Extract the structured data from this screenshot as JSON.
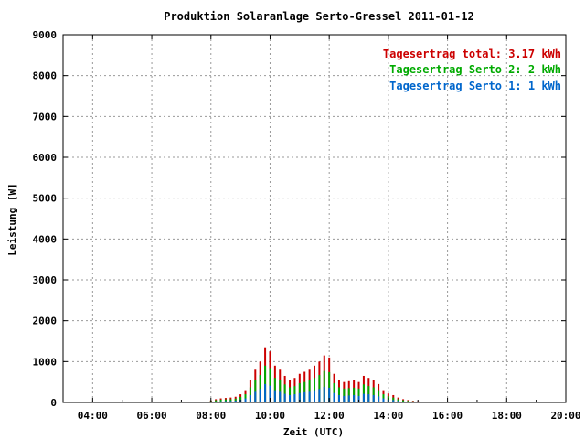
{
  "chart_data": {
    "type": "bar",
    "title": "Produktion Solaranlage Serto-Gressel 2011-01-12",
    "xlabel": "Zeit (UTC)",
    "ylabel": "Leistung [W]",
    "x_ticks": [
      "04:00",
      "06:00",
      "08:00",
      "10:00",
      "12:00",
      "14:00",
      "16:00",
      "18:00",
      "20:00"
    ],
    "y_ticks": [
      "0",
      "1000",
      "2000",
      "3000",
      "4000",
      "5000",
      "6000",
      "7000",
      "8000",
      "9000"
    ],
    "ylim": [
      0,
      9000
    ],
    "xlim_hours": [
      3.0,
      20.0
    ],
    "grid": true,
    "legend_position": "top-right",
    "colors": {
      "total": "#cc0000",
      "serto2": "#00aa00",
      "serto1": "#0066cc"
    },
    "legend": [
      {
        "key": "total",
        "label": "Tagesertrag total:",
        "value": "3.17 kWh"
      },
      {
        "key": "serto2",
        "label": "Tagesertrag Serto 2:",
        "value": "2 kWh"
      },
      {
        "key": "serto1",
        "label": "Tagesertrag Serto 1:",
        "value": "1 kWh"
      }
    ],
    "times": [
      "08:00",
      "08:10",
      "08:20",
      "08:30",
      "08:40",
      "08:50",
      "09:00",
      "09:10",
      "09:20",
      "09:30",
      "09:40",
      "09:50",
      "10:00",
      "10:10",
      "10:20",
      "10:30",
      "10:40",
      "10:50",
      "11:00",
      "11:10",
      "11:20",
      "11:30",
      "11:40",
      "11:50",
      "12:00",
      "12:10",
      "12:20",
      "12:30",
      "12:40",
      "12:50",
      "13:00",
      "13:10",
      "13:20",
      "13:30",
      "13:40",
      "13:50",
      "14:00",
      "14:10",
      "14:20",
      "14:30",
      "14:40",
      "14:50",
      "15:00",
      "15:10"
    ],
    "series": [
      {
        "name": "Tagesertrag total",
        "values": [
          50,
          80,
          100,
          110,
          120,
          140,
          200,
          300,
          550,
          800,
          1000,
          1350,
          1250,
          900,
          800,
          650,
          550,
          600,
          700,
          750,
          800,
          900,
          1000,
          1150,
          1100,
          700,
          550,
          500,
          520,
          540,
          500,
          650,
          600,
          550,
          450,
          300,
          220,
          180,
          120,
          80,
          60,
          40,
          30,
          20
        ]
      },
      {
        "name": "Tagesertrag Serto 2",
        "values": [
          35,
          55,
          70,
          75,
          80,
          95,
          135,
          200,
          370,
          540,
          670,
          900,
          840,
          600,
          540,
          440,
          370,
          400,
          470,
          500,
          540,
          600,
          670,
          770,
          740,
          470,
          370,
          340,
          350,
          360,
          340,
          440,
          400,
          370,
          300,
          200,
          150,
          120,
          80,
          55,
          40,
          27,
          20,
          13
        ]
      },
      {
        "name": "Tagesertrag Serto 1",
        "values": [
          15,
          25,
          30,
          35,
          40,
          45,
          65,
          100,
          180,
          260,
          330,
          450,
          410,
          300,
          260,
          210,
          180,
          200,
          230,
          250,
          260,
          300,
          330,
          380,
          360,
          230,
          180,
          160,
          170,
          180,
          160,
          210,
          200,
          180,
          150,
          100,
          70,
          60,
          40,
          25,
          20,
          13,
          10,
          7
        ]
      }
    ]
  }
}
